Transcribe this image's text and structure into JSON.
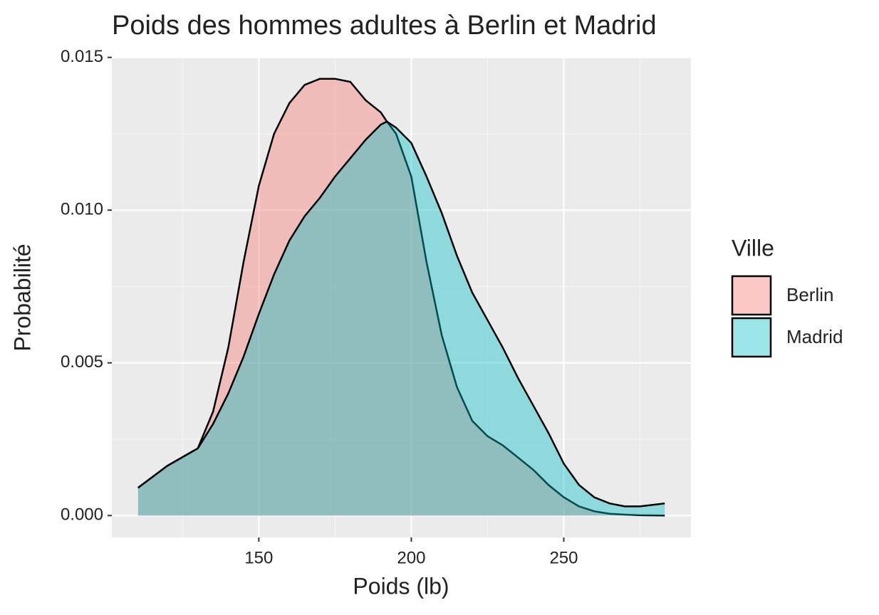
{
  "chart_data": {
    "type": "density",
    "title": "Poids des hommes adultes à Berlin et Madrid",
    "x_label": "Poids (lb)",
    "y_label": "Probabilité",
    "legend_title": "Ville",
    "legend_position": "right",
    "x": [
      110.4,
      120,
      130,
      135,
      140,
      145,
      150,
      155,
      160,
      165,
      170,
      175,
      180,
      185,
      190,
      192,
      195,
      200,
      205,
      210,
      215,
      220,
      225,
      230,
      235,
      240,
      245,
      250,
      255,
      260,
      265,
      270,
      275,
      283.1
    ],
    "series": [
      {
        "name": "Berlin",
        "color": "#F8766D",
        "values": [
          0.00091,
          0.00163,
          0.0022,
          0.0034,
          0.0055,
          0.0083,
          0.0108,
          0.0125,
          0.0135,
          0.0141,
          0.0143,
          0.0143,
          0.0142,
          0.0136,
          0.0132,
          0.0129,
          0.0125,
          0.0111,
          0.0083,
          0.0059,
          0.0042,
          0.0031,
          0.0026,
          0.0023,
          0.0019,
          0.0015,
          0.001,
          0.0006,
          0.0003,
          0.00014,
          6e-05,
          3e-05,
          1e-05,
          0
        ]
      },
      {
        "name": "Madrid",
        "color": "#00BFC4",
        "values": [
          0.00091,
          0.00163,
          0.0022,
          0.003,
          0.004,
          0.0052,
          0.0066,
          0.0079,
          0.009,
          0.0098,
          0.0104,
          0.0111,
          0.0117,
          0.0123,
          0.0128,
          0.0129,
          0.0127,
          0.0122,
          0.0111,
          0.0099,
          0.0085,
          0.0073,
          0.0064,
          0.0055,
          0.0045,
          0.0036,
          0.0027,
          0.0017,
          0.001,
          0.0006,
          0.0004,
          0.0003,
          0.0003,
          0.0004
        ]
      }
    ],
    "xlim": [
      101.8,
      291.7
    ],
    "ylim": [
      -0.000715,
      0.015015
    ],
    "xticks": [
      150,
      200,
      250
    ],
    "yticks": [
      {
        "value": 0,
        "label": "0.000"
      },
      0.005,
      {
        "value": 0.01,
        "label": "0.010"
      },
      0.015
    ],
    "xminor": [
      125,
      175,
      225,
      275
    ],
    "yminor": [
      0.0025,
      0.0075,
      0.0125
    ],
    "grid": true,
    "fill_opacity": 0.4
  }
}
